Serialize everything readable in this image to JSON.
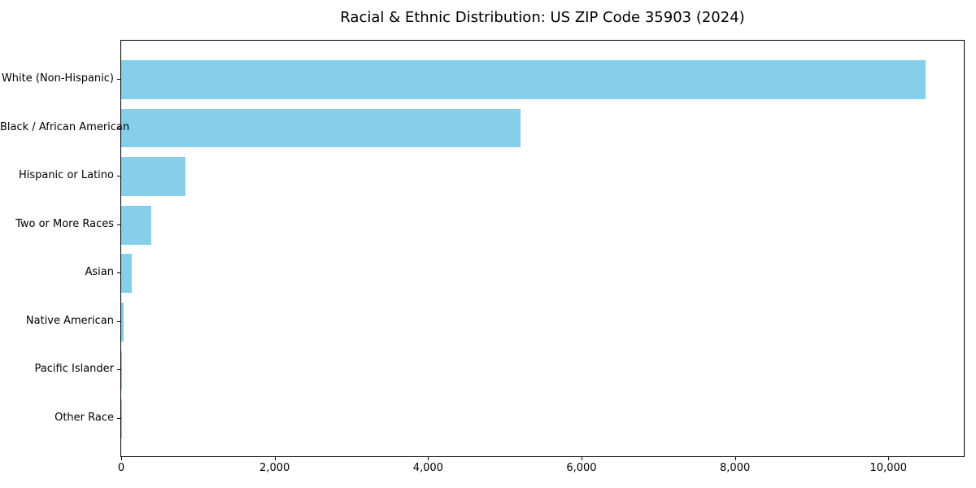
{
  "chart_data": {
    "type": "bar",
    "orientation": "horizontal",
    "title": "Racial & Ethnic Distribution: US ZIP Code 35903 (2024)",
    "categories": [
      "White (Non-Hispanic)",
      "Black / African American",
      "Hispanic or Latino",
      "Two or More Races",
      "Asian",
      "Native American",
      "Pacific Islander",
      "Other Race"
    ],
    "values": [
      10480,
      5200,
      835,
      390,
      140,
      30,
      6,
      2
    ],
    "x_tick_values": [
      0,
      2000,
      4000,
      6000,
      8000,
      10000
    ],
    "x_tick_labels": [
      "0",
      "2,000",
      "4,000",
      "6,000",
      "8,000",
      "10,000"
    ],
    "xlim": [
      0,
      11004
    ],
    "xlabel": "",
    "ylabel": "",
    "bar_color": "#87CEEB",
    "axis_color": "#000000",
    "background_color": "#FFFFFF",
    "grid": false,
    "legend": "none"
  }
}
